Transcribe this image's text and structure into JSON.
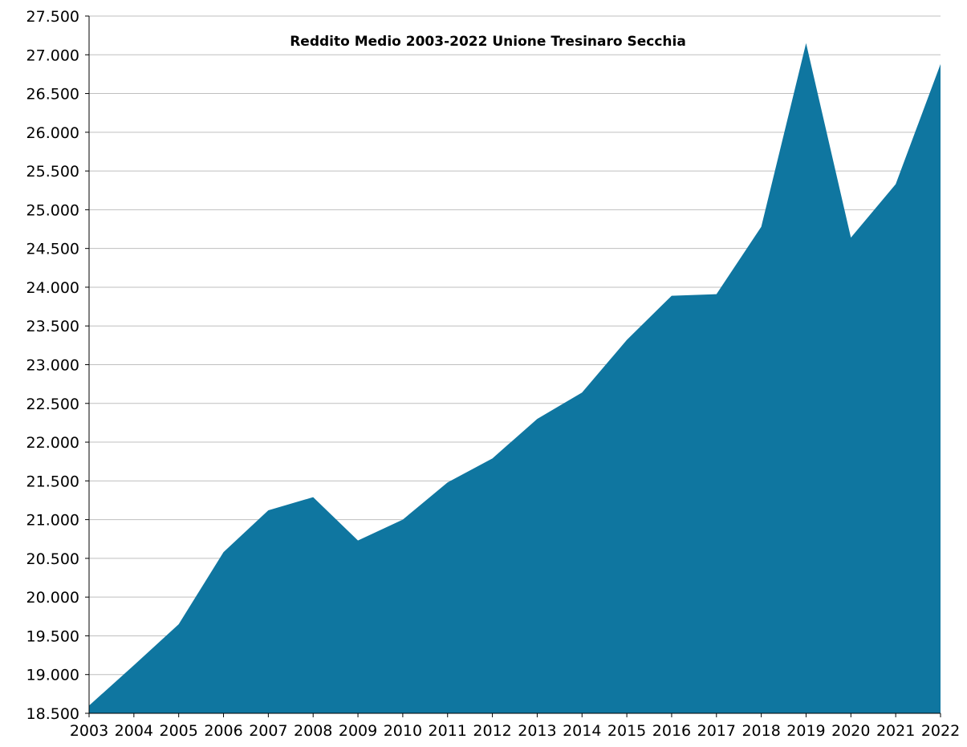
{
  "chart_data": {
    "type": "area",
    "title": "Reddito Medio 2003-2022 Unione Tresinaro Secchia",
    "xlabel": "",
    "ylabel": "",
    "x": [
      "2003",
      "2004",
      "2005",
      "2006",
      "2007",
      "2008",
      "2009",
      "2010",
      "2011",
      "2012",
      "2013",
      "2014",
      "2015",
      "2016",
      "2017",
      "2018",
      "2019",
      "2020",
      "2021",
      "2022"
    ],
    "series": [
      {
        "values": [
          18600,
          19120,
          19650,
          20580,
          21120,
          21290,
          20730,
          21000,
          21480,
          21790,
          22300,
          22640,
          23320,
          23890,
          23910,
          24780,
          27150,
          24640,
          25330,
          26880
        ]
      }
    ],
    "ylim": [
      18500,
      27500
    ],
    "y_ticks": [
      {
        "value": 18500,
        "label": "18.500"
      },
      {
        "value": 19000,
        "label": "19.000"
      },
      {
        "value": 19500,
        "label": "19.500"
      },
      {
        "value": 20000,
        "label": "20.000"
      },
      {
        "value": 20500,
        "label": "20.500"
      },
      {
        "value": 21000,
        "label": "21.000"
      },
      {
        "value": 21500,
        "label": "21.500"
      },
      {
        "value": 22000,
        "label": "22.000"
      },
      {
        "value": 22500,
        "label": "22.500"
      },
      {
        "value": 23000,
        "label": "23.000"
      },
      {
        "value": 23500,
        "label": "23.500"
      },
      {
        "value": 24000,
        "label": "24.000"
      },
      {
        "value": 24500,
        "label": "24.500"
      },
      {
        "value": 25000,
        "label": "25.000"
      },
      {
        "value": 25500,
        "label": "25.500"
      },
      {
        "value": 26000,
        "label": "26.000"
      },
      {
        "value": 26500,
        "label": "26.500"
      },
      {
        "value": 27000,
        "label": "27.000"
      },
      {
        "value": 27500,
        "label": "27.500"
      }
    ],
    "grid": true,
    "legend": "none",
    "colors": {
      "area": "#0F76A0",
      "grid": "#BFBFBF",
      "axis": "#000000"
    }
  }
}
